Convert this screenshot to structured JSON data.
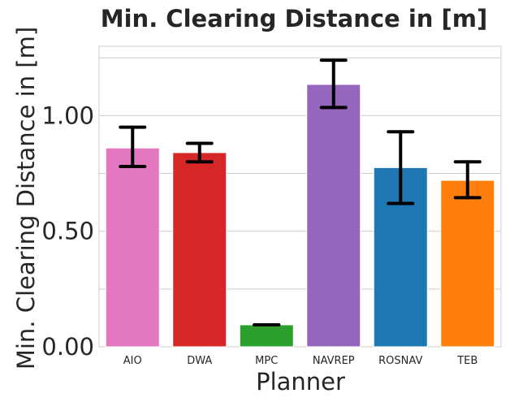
{
  "chart_data": {
    "type": "bar",
    "title": "Min. Clearing Distance in [m]",
    "xlabel": "Planner",
    "ylabel": "Min. Clearing Distance in [m]",
    "ylim": [
      0,
      1.3
    ],
    "yticks": [
      0.0,
      0.5,
      1.0
    ],
    "ytick_labels": [
      "0.00",
      "0.50",
      "1.00"
    ],
    "grid_values": [
      0.25,
      0.5,
      0.75,
      1.0,
      1.25
    ],
    "grid": true,
    "categories": [
      "AIO",
      "DWA",
      "MPC",
      "NAVREP",
      "ROSNAV",
      "TEB"
    ],
    "values": [
      0.86,
      0.84,
      0.095,
      1.135,
      0.775,
      0.72
    ],
    "error_low": [
      0.78,
      0.8,
      0.095,
      1.035,
      0.62,
      0.645
    ],
    "error_high": [
      0.95,
      0.88,
      0.095,
      1.24,
      0.93,
      0.8
    ],
    "colors": [
      "#e377c2",
      "#d62728",
      "#2ca02c",
      "#9467bd",
      "#1f77b4",
      "#ff7f0e"
    ]
  }
}
